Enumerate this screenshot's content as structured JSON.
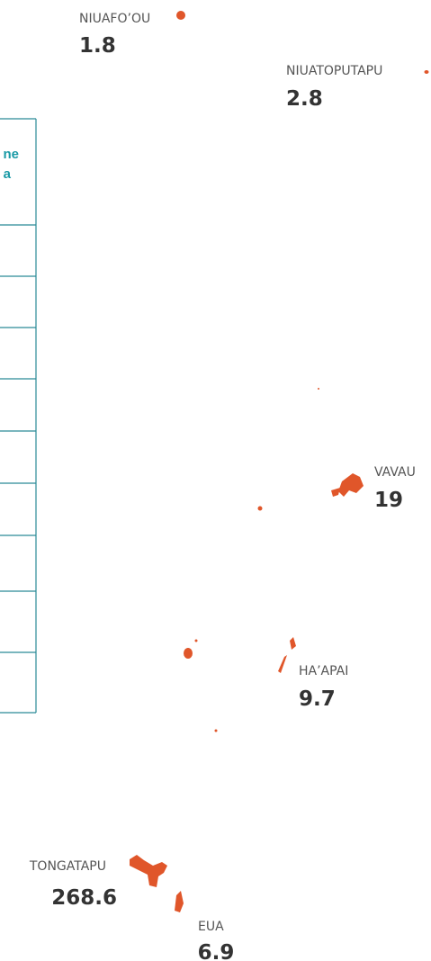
{
  "table": {
    "header": [
      "ne",
      "a"
    ]
  },
  "regions": [
    {
      "name": "NIUAFO’OU",
      "value": 1.8
    },
    {
      "name": "NIUATOPUTAPU",
      "value": 2.8
    },
    {
      "name": "VAVAU",
      "value": 19
    },
    {
      "name": "HA’APAI",
      "value": 9.7
    },
    {
      "name": "TONGATAPU",
      "value": 268.6
    },
    {
      "name": "EUA",
      "value": 6.9
    }
  ]
}
